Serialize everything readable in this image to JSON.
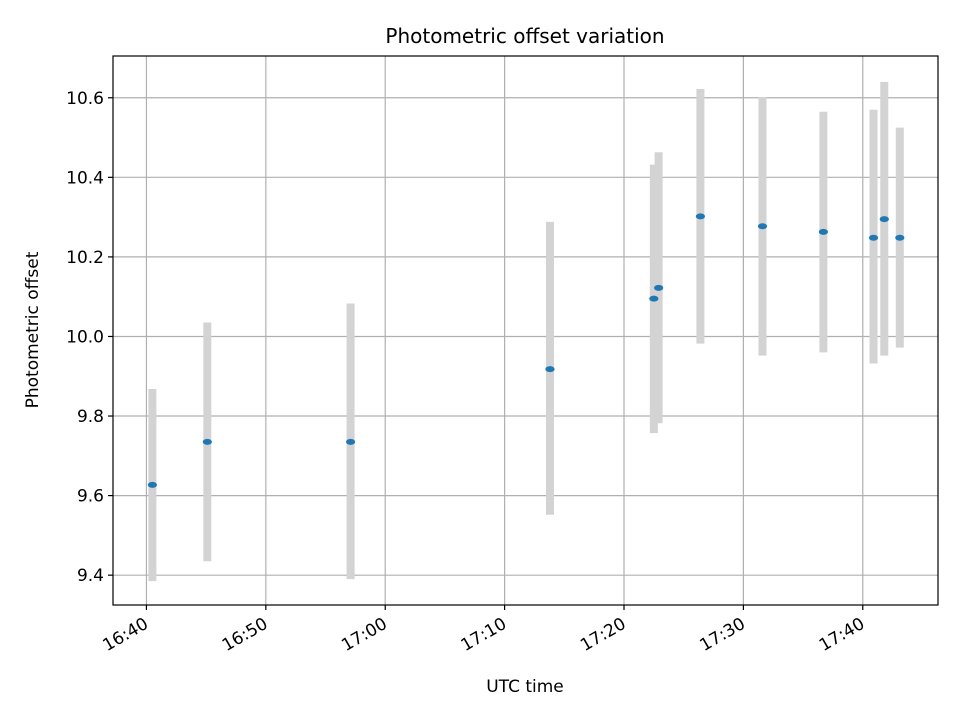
{
  "chart_data": {
    "type": "scatter",
    "title": "Photometric offset variation",
    "xlabel": "UTC time",
    "ylabel": "Photometric offset",
    "x_ticks": [
      "16:40",
      "16:50",
      "17:00",
      "17:10",
      "17:20",
      "17:30",
      "17:40"
    ],
    "x_tick_minutes": [
      1000,
      1010,
      1020,
      1030,
      1040,
      1050,
      1060
    ],
    "xlim_minutes": [
      997.2,
      1066.3
    ],
    "y_ticks": [
      "9.4",
      "9.6",
      "9.8",
      "10.0",
      "10.2",
      "10.4",
      "10.6"
    ],
    "ylim": [
      9.325,
      10.705
    ],
    "grid": true,
    "colors": {
      "point": "#1f77b4",
      "errorbar": "#d3d3d3",
      "grid": "#b0b0b0"
    },
    "points": [
      {
        "time": "16:40:30",
        "minute": 1000.5,
        "value": 9.627,
        "low": 9.385,
        "high": 9.868
      },
      {
        "time": "16:45:06",
        "minute": 1005.1,
        "value": 9.735,
        "low": 9.435,
        "high": 10.035
      },
      {
        "time": "16:57:06",
        "minute": 1017.1,
        "value": 9.735,
        "low": 9.39,
        "high": 10.083
      },
      {
        "time": "17:13:48",
        "minute": 1033.8,
        "value": 9.918,
        "low": 9.552,
        "high": 10.288
      },
      {
        "time": "17:22:30",
        "minute": 1042.5,
        "value": 10.095,
        "low": 9.757,
        "high": 10.432
      },
      {
        "time": "17:22:54",
        "minute": 1042.9,
        "value": 10.122,
        "low": 9.782,
        "high": 10.463
      },
      {
        "time": "17:26:24",
        "minute": 1046.4,
        "value": 10.302,
        "low": 9.982,
        "high": 10.622
      },
      {
        "time": "17:31:36",
        "minute": 1051.6,
        "value": 10.277,
        "low": 9.952,
        "high": 10.602
      },
      {
        "time": "17:36:42",
        "minute": 1056.7,
        "value": 10.263,
        "low": 9.96,
        "high": 10.565
      },
      {
        "time": "17:40:54",
        "minute": 1060.9,
        "value": 10.248,
        "low": 9.932,
        "high": 10.57
      },
      {
        "time": "17:41:48",
        "minute": 1061.8,
        "value": 10.295,
        "low": 9.952,
        "high": 10.64
      },
      {
        "time": "17:43:06",
        "minute": 1063.1,
        "value": 10.248,
        "low": 9.972,
        "high": 10.525
      }
    ]
  }
}
